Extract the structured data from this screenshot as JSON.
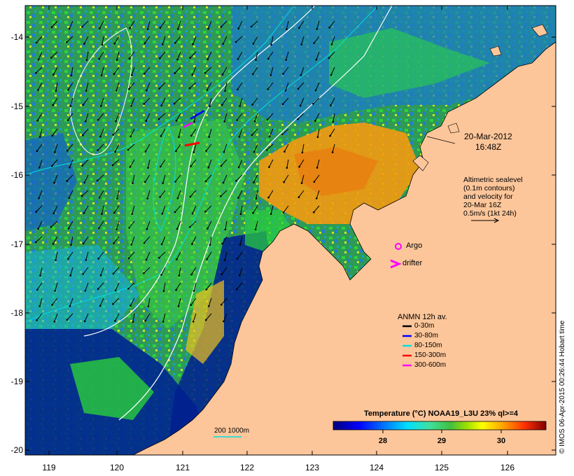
{
  "map": {
    "y_ticks": [
      "-14",
      "-15",
      "-16",
      "-17",
      "-18",
      "-19",
      "-20"
    ],
    "x_ticks": [
      "119",
      "120",
      "121",
      "122",
      "123",
      "124",
      "125",
      "126"
    ],
    "date_line1": "20-Mar-2012",
    "date_line2": "16:48Z",
    "altimetry_lines": [
      "Altimetric sealevel",
      "(0.1m contours)",
      "and velocity for",
      "20-Mar 16Z",
      "0.5m/s (1kt 24h)"
    ],
    "argo_label": "Argo",
    "drifter_label": "drifter",
    "anmn_title": "ANMN 12h av.",
    "anmn_items": [
      {
        "label": "0-30m",
        "color": "#000000"
      },
      {
        "label": "30-80m",
        "color": "#0000ff"
      },
      {
        "label": "80-150m",
        "color": "#00e0e0"
      },
      {
        "label": "150-300m",
        "color": "#ff0000"
      },
      {
        "label": "300-600m",
        "color": "#ff00ff"
      }
    ],
    "colorbar_title": "Temperature (°C) NOAA19_L3U 23% ql>=4",
    "colorbar_ticks": [
      "28",
      "29",
      "30"
    ],
    "isobath_label": "200 1000m",
    "credit": "© IMOS 06-Apr-2015 00:26:44 Hobart time",
    "colors": {
      "land": "#fdc69a",
      "argo": "#ff00ff",
      "drifter": "#ff00ff",
      "isobath_200": "#00e0e0",
      "isobath_1000": "#ffffff"
    }
  }
}
